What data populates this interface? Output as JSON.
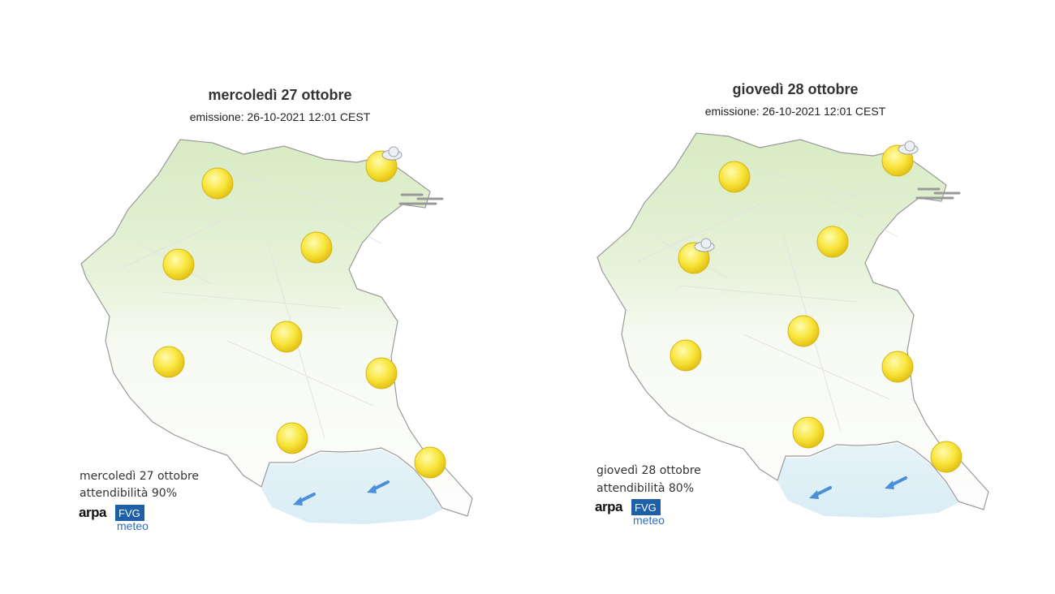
{
  "panels": [
    {
      "title": "mercoledì 27 ottobre",
      "emission": "emissione: 26-10-2021 12:01 CEST",
      "footer_day": "mercoledì 27 ottobre",
      "reliability": "attendibilità 90%",
      "logo": {
        "arpa": "arpa",
        "fvg": "FVG",
        "meteo": "meteo"
      }
    },
    {
      "title": "giovedì 28 ottobre",
      "emission": "emissione: 26-10-2021 12:01 CEST",
      "footer_day": "giovedì 28 ottobre",
      "reliability": "attendibilità 80%",
      "logo": {
        "arpa": "arpa",
        "fvg": "FVG",
        "meteo": "meteo"
      }
    }
  ]
}
